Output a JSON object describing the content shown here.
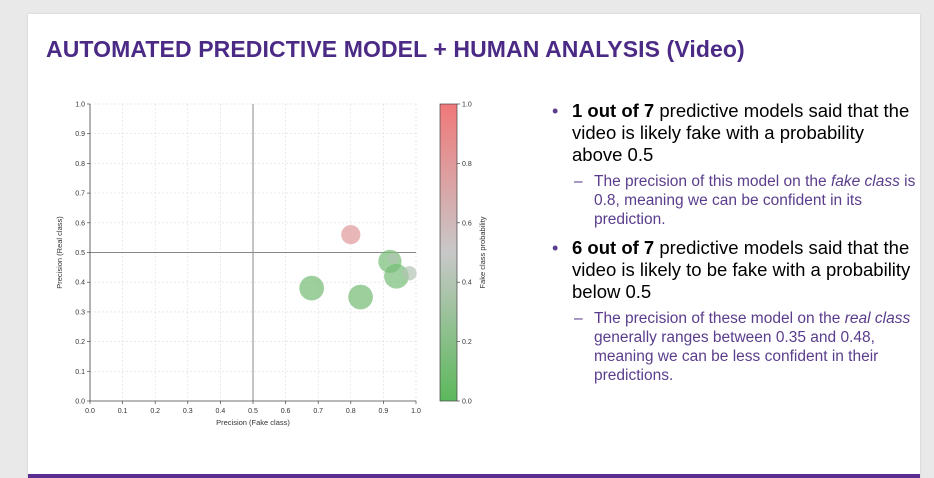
{
  "slide": {
    "title": "AUTOMATED PREDICTIVE MODEL + HUMAN ANALYSIS (Video)"
  },
  "bullets": [
    {
      "bold": "1 out of 7",
      "text": " predictive models said that the video is likely fake with a probability above 0.5",
      "sub": {
        "pre": "The precision of this model on the ",
        "em": "fake class",
        "post": " is 0.8, meaning we can be confident in its prediction."
      }
    },
    {
      "bold": "6 out of 7",
      "text": " predictive models said that the video is likely to be fake with a probability below 0.5",
      "sub": {
        "pre": "The precision of these model on the ",
        "em": "real class",
        "post": " generally ranges between 0.35 and 0.48, meaning we can be less confident in their predictions."
      }
    }
  ],
  "chart_data": {
    "type": "scatter",
    "xlabel": "Precision (Fake class)",
    "ylabel": "Precision (Real class)",
    "xlim": [
      0.0,
      1.0
    ],
    "ylim": [
      0.0,
      1.0
    ],
    "xticks": [
      "0.0",
      "0.1",
      "0.2",
      "0.3",
      "0.4",
      "0.5",
      "0.6",
      "0.7",
      "0.8",
      "0.9",
      "1.0"
    ],
    "yticks": [
      "0.0",
      "0.1",
      "0.2",
      "0.3",
      "0.4",
      "0.5",
      "0.6",
      "0.7",
      "0.8",
      "0.9",
      "1.0"
    ],
    "grid": true,
    "reference_lines": {
      "x": 0.5,
      "y": 0.5
    },
    "colorbar": {
      "label": "Fake class probability",
      "range": [
        0.0,
        1.0
      ],
      "ticks": [
        "0.0",
        "0.2",
        "0.4",
        "0.6",
        "0.8",
        "1.0"
      ],
      "color_low": "#5cb85c",
      "color_high": "#f0787a"
    },
    "points": [
      {
        "x": 0.8,
        "y": 0.56,
        "prob": 0.8,
        "size": 0.55
      },
      {
        "x": 0.68,
        "y": 0.38,
        "prob": 0.1,
        "size": 0.78
      },
      {
        "x": 0.83,
        "y": 0.35,
        "prob": 0.1,
        "size": 0.78
      },
      {
        "x": 0.92,
        "y": 0.47,
        "prob": 0.12,
        "size": 0.72
      },
      {
        "x": 0.94,
        "y": 0.42,
        "prob": 0.12,
        "size": 0.78
      },
      {
        "x": 0.98,
        "y": 0.43,
        "prob": 0.4,
        "size": 0.35
      },
      {
        "x": 0.93,
        "y": 0.48,
        "prob": 0.4,
        "size": 0.22
      }
    ]
  }
}
